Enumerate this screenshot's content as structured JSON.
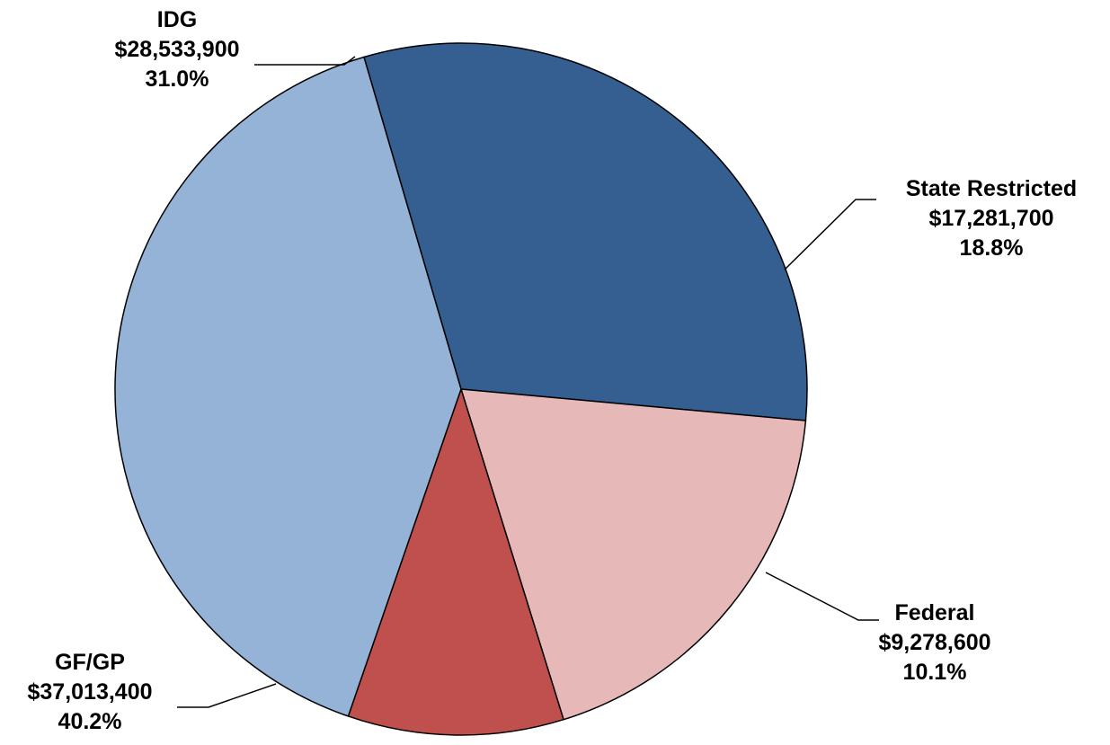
{
  "chart_data": {
    "type": "pie",
    "slices": [
      {
        "name": "IDG",
        "value": 28533900,
        "value_label": "$28,533,900",
        "percent_label": "31.0%",
        "color": "#365F91"
      },
      {
        "name": "State Restricted",
        "value": 17281700,
        "value_label": "$17,281,700",
        "percent_label": "18.8%",
        "color": "#E6B9B8"
      },
      {
        "name": "Federal",
        "value": 9278600,
        "value_label": "$9,278,600",
        "percent_label": "10.1%",
        "color": "#C0504D"
      },
      {
        "name": "GF/GP",
        "value": 37013400,
        "value_label": "$37,013,400",
        "percent_label": "40.2%",
        "color": "#95B3D7"
      }
    ],
    "start_angle_deg": -16.3,
    "direction": "clockwise",
    "legend": "none",
    "title": ""
  }
}
